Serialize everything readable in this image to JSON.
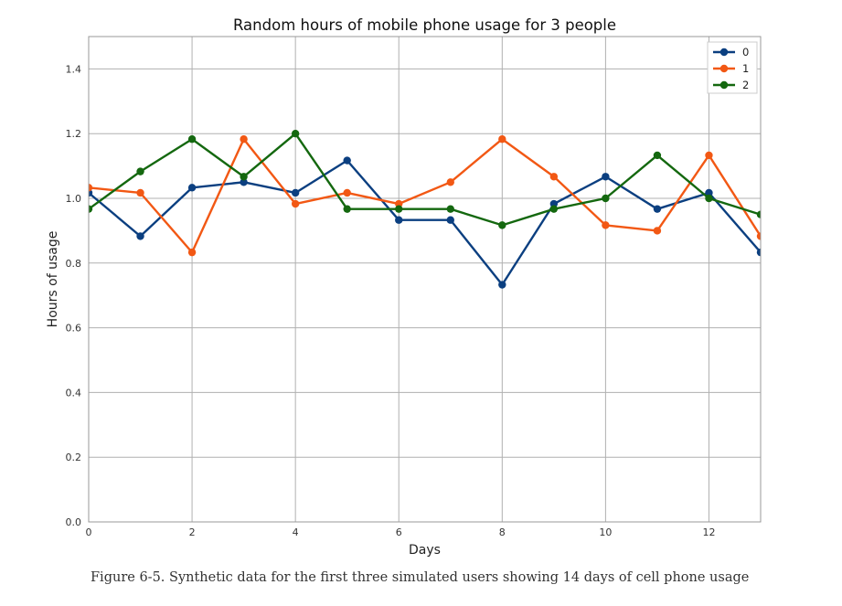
{
  "chart_data": {
    "type": "line",
    "title": "Random hours of mobile phone usage for 3 people",
    "xlabel": "Days",
    "ylabel": "Hours of usage",
    "xlim": [
      0,
      13
    ],
    "ylim": [
      0,
      1.5
    ],
    "xticks": [
      0,
      2,
      4,
      6,
      8,
      10,
      12
    ],
    "xtick_labels": [
      "0",
      "2",
      "4",
      "6",
      "8",
      "10",
      "12"
    ],
    "yticks": [
      0,
      0.2,
      0.4,
      0.6,
      0.8,
      1.0,
      1.2,
      1.4
    ],
    "ytick_labels": [
      "0.0",
      "0.2",
      "0.4",
      "0.6",
      "0.8",
      "1.0",
      "1.2",
      "1.4"
    ],
    "grid": true,
    "legend_position": "top-right",
    "x": [
      0,
      1,
      2,
      3,
      4,
      5,
      6,
      7,
      8,
      9,
      10,
      11,
      12,
      13
    ],
    "series": [
      {
        "name": "0",
        "color": "#0b3f80",
        "values": [
          1.017,
          0.883,
          1.033,
          1.05,
          1.017,
          1.117,
          0.933,
          0.933,
          0.733,
          0.983,
          1.067,
          0.967,
          1.017,
          0.833
        ]
      },
      {
        "name": "1",
        "color": "#f25814",
        "values": [
          1.033,
          1.017,
          0.833,
          1.183,
          0.983,
          1.017,
          0.983,
          1.05,
          1.183,
          1.067,
          0.917,
          0.9,
          1.133,
          0.883
        ]
      },
      {
        "name": "2",
        "color": "#14680f",
        "values": [
          0.967,
          1.083,
          1.183,
          1.067,
          1.2,
          0.967,
          0.967,
          0.967,
          0.917,
          0.967,
          1.0,
          1.133,
          1.0,
          0.95
        ]
      }
    ]
  },
  "caption": "Figure 6-5. Synthetic data for the first three simulated users showing 14 days of cell phone usage"
}
